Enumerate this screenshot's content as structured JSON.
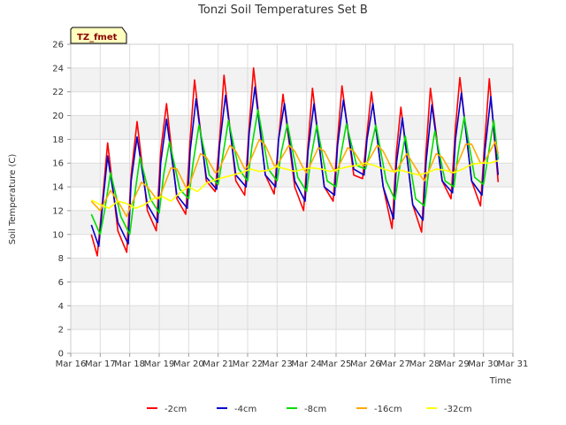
{
  "chart_data": {
    "type": "line",
    "title": "Tonzi Soil Temperatures Set B",
    "xlabel": "Time",
    "ylabel": "Soil Temperature (C)",
    "badge": "TZ_fmet",
    "ylim": [
      0,
      26
    ],
    "yticks": [
      0,
      2,
      4,
      6,
      8,
      10,
      12,
      14,
      16,
      18,
      20,
      22,
      24,
      26
    ],
    "xlim": [
      16,
      31
    ],
    "xticks": [
      {
        "v": 16,
        "label": "Mar 16"
      },
      {
        "v": 17,
        "label": "Mar 17"
      },
      {
        "v": 18,
        "label": "Mar 18"
      },
      {
        "v": 19,
        "label": "Mar 19"
      },
      {
        "v": 20,
        "label": "Mar 20"
      },
      {
        "v": 21,
        "label": "Mar 21"
      },
      {
        "v": 22,
        "label": "Mar 22"
      },
      {
        "v": 23,
        "label": "Mar 23"
      },
      {
        "v": 24,
        "label": "Mar 24"
      },
      {
        "v": 25,
        "label": "Mar 25"
      },
      {
        "v": 26,
        "label": "Mar 26"
      },
      {
        "v": 27,
        "label": "Mar 27"
      },
      {
        "v": 28,
        "label": "Mar 28"
      },
      {
        "v": 29,
        "label": "Mar 29"
      },
      {
        "v": 30,
        "label": "Mar 30"
      },
      {
        "v": 31,
        "label": "Mar 31"
      }
    ],
    "grid": true,
    "legend_position": "bottom",
    "series": [
      {
        "name": "-2cm",
        "color": "#ff0000",
        "x": [
          16.7,
          16.9,
          17.1,
          17.25,
          17.6,
          17.9,
          18.05,
          18.25,
          18.6,
          18.9,
          19.05,
          19.25,
          19.6,
          19.9,
          20.05,
          20.2,
          20.6,
          20.9,
          21.05,
          21.2,
          21.6,
          21.9,
          22.05,
          22.2,
          22.6,
          22.9,
          23.05,
          23.2,
          23.6,
          23.9,
          24.05,
          24.2,
          24.6,
          24.9,
          25.05,
          25.2,
          25.6,
          25.9,
          26.05,
          26.2,
          26.6,
          26.9,
          27.05,
          27.2,
          27.6,
          27.9,
          28.05,
          28.2,
          28.6,
          28.9,
          29.05,
          29.2,
          29.6,
          29.9,
          30.05,
          30.2,
          30.5
        ],
        "y": [
          10.0,
          8.2,
          13.5,
          17.7,
          10.3,
          8.5,
          15.0,
          19.5,
          12.0,
          10.3,
          17.0,
          21.0,
          13.0,
          11.7,
          18.0,
          23.0,
          14.5,
          13.6,
          18.0,
          23.4,
          14.5,
          13.3,
          19.0,
          24.0,
          15.0,
          13.4,
          18.0,
          21.8,
          14.0,
          12.0,
          17.5,
          22.3,
          14.0,
          12.8,
          18.0,
          22.5,
          15.0,
          14.7,
          18.5,
          22.0,
          14.0,
          10.5,
          17.0,
          20.7,
          12.5,
          10.2,
          17.0,
          22.3,
          14.5,
          13.0,
          19.0,
          23.2,
          14.5,
          12.4,
          18.0,
          23.1,
          14.4
        ]
      },
      {
        "name": "-4cm",
        "color": "#0000cc",
        "x": [
          16.7,
          16.95,
          17.1,
          17.25,
          17.6,
          17.95,
          18.05,
          18.25,
          18.6,
          18.95,
          19.05,
          19.25,
          19.6,
          19.95,
          20.05,
          20.25,
          20.6,
          20.95,
          21.05,
          21.25,
          21.6,
          21.95,
          22.05,
          22.25,
          22.6,
          22.95,
          23.05,
          23.25,
          23.6,
          23.95,
          24.05,
          24.25,
          24.6,
          24.95,
          25.05,
          25.25,
          25.6,
          25.95,
          26.05,
          26.25,
          26.6,
          26.95,
          27.05,
          27.25,
          27.6,
          27.95,
          28.05,
          28.25,
          28.6,
          28.95,
          29.05,
          29.25,
          29.6,
          29.95,
          30.05,
          30.25,
          30.5
        ],
        "y": [
          10.8,
          9.0,
          13.0,
          16.6,
          11.0,
          9.2,
          14.5,
          18.2,
          12.5,
          11.0,
          16.0,
          19.7,
          13.3,
          12.2,
          17.0,
          21.4,
          14.8,
          13.8,
          17.5,
          21.7,
          15.0,
          14.0,
          18.5,
          22.4,
          15.0,
          14.0,
          18.0,
          21.0,
          14.5,
          12.8,
          17.0,
          21.0,
          14.0,
          13.3,
          17.5,
          21.3,
          15.5,
          15.0,
          18.0,
          21.0,
          14.0,
          11.3,
          16.0,
          19.8,
          12.5,
          11.2,
          16.0,
          20.9,
          14.5,
          13.5,
          18.0,
          21.9,
          14.5,
          13.3,
          17.0,
          21.6,
          15.0
        ]
      },
      {
        "name": "-8cm",
        "color": "#00dd00",
        "x": [
          16.7,
          17.0,
          17.15,
          17.35,
          17.7,
          18.0,
          18.15,
          18.35,
          18.7,
          19.0,
          19.15,
          19.35,
          19.7,
          20.0,
          20.15,
          20.35,
          20.7,
          21.0,
          21.15,
          21.35,
          21.7,
          22.0,
          22.15,
          22.35,
          22.7,
          23.0,
          23.15,
          23.35,
          23.7,
          24.0,
          24.15,
          24.35,
          24.7,
          25.0,
          25.15,
          25.35,
          25.7,
          26.0,
          26.15,
          26.35,
          26.7,
          27.0,
          27.15,
          27.35,
          27.7,
          28.0,
          28.15,
          28.35,
          28.7,
          29.0,
          29.15,
          29.35,
          29.7,
          30.0,
          30.15,
          30.35,
          30.5
        ],
        "y": [
          11.7,
          10.0,
          12.0,
          15.2,
          11.5,
          10.0,
          13.0,
          16.5,
          13.0,
          11.8,
          15.0,
          17.8,
          13.8,
          13.0,
          16.0,
          19.2,
          15.0,
          14.2,
          16.5,
          19.6,
          15.5,
          14.5,
          17.5,
          20.5,
          15.5,
          14.5,
          17.0,
          19.3,
          14.8,
          13.6,
          16.5,
          19.2,
          14.5,
          14.0,
          16.5,
          19.3,
          15.8,
          15.5,
          17.0,
          19.2,
          14.5,
          12.9,
          15.5,
          18.3,
          13.0,
          12.4,
          15.5,
          18.7,
          14.5,
          14.0,
          17.0,
          19.9,
          14.8,
          14.2,
          16.5,
          19.6,
          16.3
        ]
      },
      {
        "name": "-16cm",
        "color": "#ffaa00",
        "x": [
          16.7,
          17.0,
          17.35,
          17.6,
          17.9,
          18.0,
          18.4,
          18.6,
          18.9,
          19.0,
          19.4,
          19.6,
          19.9,
          20.0,
          20.4,
          20.6,
          20.9,
          21.0,
          21.4,
          21.6,
          21.9,
          22.0,
          22.4,
          22.6,
          22.9,
          23.0,
          23.4,
          23.6,
          23.9,
          24.0,
          24.4,
          24.6,
          24.9,
          25.0,
          25.4,
          25.6,
          25.9,
          26.0,
          26.4,
          26.6,
          26.9,
          27.0,
          27.4,
          27.6,
          27.9,
          28.0,
          28.4,
          28.6,
          28.9,
          29.0,
          29.4,
          29.6,
          29.9,
          30.0,
          30.4,
          30.5
        ],
        "y": [
          12.8,
          12.0,
          13.7,
          12.8,
          11.5,
          12.2,
          14.4,
          14.0,
          13.0,
          13.0,
          15.6,
          15.5,
          14.0,
          14.0,
          16.8,
          16.5,
          15.2,
          15.3,
          17.5,
          17.0,
          15.5,
          15.7,
          18.0,
          17.5,
          15.8,
          15.8,
          17.5,
          17.0,
          15.5,
          15.2,
          17.3,
          17.0,
          15.5,
          15.3,
          17.3,
          17.0,
          15.8,
          15.8,
          17.5,
          17.0,
          15.5,
          15.2,
          16.8,
          16.0,
          14.8,
          14.5,
          16.8,
          16.5,
          15.2,
          15.2,
          17.6,
          17.6,
          16.0,
          16.0,
          17.8,
          16.8
        ]
      },
      {
        "name": "-32cm",
        "color": "#ffff00",
        "x": [
          16.7,
          17.0,
          17.3,
          17.6,
          17.9,
          18.2,
          18.5,
          18.8,
          19.1,
          19.4,
          19.7,
          20.0,
          20.3,
          20.6,
          20.9,
          21.2,
          21.5,
          21.8,
          22.1,
          22.4,
          22.7,
          23.0,
          23.3,
          23.6,
          23.9,
          24.2,
          24.5,
          24.8,
          25.1,
          25.4,
          25.7,
          26.0,
          26.3,
          26.6,
          26.9,
          27.2,
          27.5,
          27.8,
          28.1,
          28.4,
          28.7,
          29.0,
          29.3,
          29.6,
          29.9,
          30.2,
          30.5
        ],
        "y": [
          12.9,
          12.5,
          12.2,
          12.8,
          12.6,
          12.2,
          12.5,
          13.0,
          13.2,
          12.8,
          13.5,
          14.0,
          13.6,
          14.3,
          14.6,
          14.8,
          15.0,
          15.2,
          15.5,
          15.3,
          15.4,
          15.7,
          15.5,
          15.3,
          15.5,
          15.6,
          15.5,
          15.3,
          15.5,
          15.7,
          15.8,
          16.0,
          15.8,
          15.5,
          15.3,
          15.4,
          15.2,
          15.0,
          15.2,
          15.5,
          15.4,
          15.2,
          15.5,
          15.9,
          16.0,
          16.0,
          16.2
        ]
      }
    ]
  }
}
